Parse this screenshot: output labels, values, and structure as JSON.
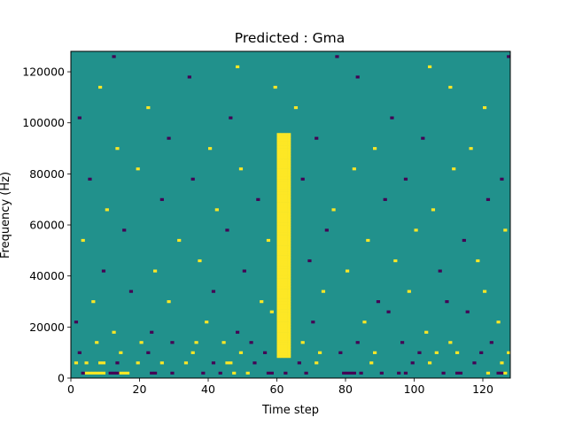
{
  "chart_data": {
    "type": "heatmap",
    "title": "Predicted : Gma",
    "xlabel": "Time step",
    "ylabel": "Frequency (Hz)",
    "x_range": [
      0,
      128
    ],
    "y_range": [
      0,
      128000
    ],
    "x_ticks": [
      "0",
      "20",
      "40",
      "60",
      "80",
      "100",
      "120"
    ],
    "y_ticks": [
      "0",
      "20000",
      "40000",
      "60000",
      "80000",
      "100000",
      "120000"
    ],
    "n_time_steps": 128,
    "n_freq_bins": 128,
    "background_value": 0,
    "value_colors": {
      "-1": "#440154",
      "0": "#21918c",
      "1": "#fde725"
    },
    "dense_band": {
      "time_steps": [
        60,
        64
      ],
      "freq_range_hz": [
        8000,
        96000
      ],
      "value": 1
    },
    "cells": [
      {
        "t": 4,
        "f_hz": 2000,
        "v": 1
      },
      {
        "t": 5,
        "f_hz": 2000,
        "v": 1
      },
      {
        "t": 6,
        "f_hz": 2000,
        "v": 1
      },
      {
        "t": 7,
        "f_hz": 2000,
        "v": 1
      },
      {
        "t": 8,
        "f_hz": 2000,
        "v": 1
      },
      {
        "t": 9,
        "f_hz": 2000,
        "v": 1
      },
      {
        "t": 3,
        "f_hz": 2000,
        "v": -1
      },
      {
        "t": 14,
        "f_hz": 2000,
        "v": 1
      },
      {
        "t": 15,
        "f_hz": 2000,
        "v": 1
      },
      {
        "t": 16,
        "f_hz": 2000,
        "v": 1
      },
      {
        "t": 23,
        "f_hz": 2000,
        "v": -1
      },
      {
        "t": 24,
        "f_hz": 2000,
        "v": -1
      },
      {
        "t": 11,
        "f_hz": 2000,
        "v": -1
      },
      {
        "t": 12,
        "f_hz": 2000,
        "v": -1
      },
      {
        "t": 13,
        "f_hz": 2000,
        "v": -1
      },
      {
        "t": 29,
        "f_hz": 2000,
        "v": -1
      },
      {
        "t": 38,
        "f_hz": 2000,
        "v": -1
      },
      {
        "t": 43,
        "f_hz": 2000,
        "v": -1
      },
      {
        "t": 47,
        "f_hz": 2000,
        "v": 1
      },
      {
        "t": 51,
        "f_hz": 2000,
        "v": 1
      },
      {
        "t": 57,
        "f_hz": 2000,
        "v": -1
      },
      {
        "t": 58,
        "f_hz": 2000,
        "v": -1
      },
      {
        "t": 62,
        "f_hz": 2000,
        "v": -1
      },
      {
        "t": 68,
        "f_hz": 2000,
        "v": -1
      },
      {
        "t": 79,
        "f_hz": 2000,
        "v": -1
      },
      {
        "t": 80,
        "f_hz": 2000,
        "v": -1
      },
      {
        "t": 81,
        "f_hz": 2000,
        "v": -1
      },
      {
        "t": 82,
        "f_hz": 2000,
        "v": -1
      },
      {
        "t": 84,
        "f_hz": 2000,
        "v": -1
      },
      {
        "t": 90,
        "f_hz": 2000,
        "v": -1
      },
      {
        "t": 95,
        "f_hz": 2000,
        "v": -1
      },
      {
        "t": 97,
        "f_hz": 2000,
        "v": -1
      },
      {
        "t": 108,
        "f_hz": 2000,
        "v": -1
      },
      {
        "t": 112,
        "f_hz": 2000,
        "v": -1
      },
      {
        "t": 113,
        "f_hz": 2000,
        "v": -1
      },
      {
        "t": 121,
        "f_hz": 2000,
        "v": 1
      },
      {
        "t": 124,
        "f_hz": 2000,
        "v": -1
      },
      {
        "t": 125,
        "f_hz": 2000,
        "v": -1
      },
      {
        "t": 126,
        "f_hz": 2000,
        "v": 1
      },
      {
        "t": 1,
        "f_hz": 6000,
        "v": 1
      },
      {
        "t": 4,
        "f_hz": 6000,
        "v": 1
      },
      {
        "t": 8,
        "f_hz": 6000,
        "v": 1
      },
      {
        "t": 9,
        "f_hz": 6000,
        "v": 1
      },
      {
        "t": 13,
        "f_hz": 6000,
        "v": -1
      },
      {
        "t": 19,
        "f_hz": 6000,
        "v": 1
      },
      {
        "t": 26,
        "f_hz": 6000,
        "v": 1
      },
      {
        "t": 33,
        "f_hz": 6000,
        "v": 1
      },
      {
        "t": 41,
        "f_hz": 6000,
        "v": -1
      },
      {
        "t": 45,
        "f_hz": 6000,
        "v": 1
      },
      {
        "t": 46,
        "f_hz": 6000,
        "v": 1
      },
      {
        "t": 53,
        "f_hz": 6000,
        "v": -1
      },
      {
        "t": 66,
        "f_hz": 6000,
        "v": -1
      },
      {
        "t": 71,
        "f_hz": 6000,
        "v": 1
      },
      {
        "t": 87,
        "f_hz": 6000,
        "v": 1
      },
      {
        "t": 99,
        "f_hz": 6000,
        "v": -1
      },
      {
        "t": 104,
        "f_hz": 6000,
        "v": 1
      },
      {
        "t": 117,
        "f_hz": 6000,
        "v": -1
      },
      {
        "t": 125,
        "f_hz": 6000,
        "v": 1
      },
      {
        "t": 2,
        "f_hz": 10000,
        "v": -1
      },
      {
        "t": 14,
        "f_hz": 10000,
        "v": 1
      },
      {
        "t": 22,
        "f_hz": 10000,
        "v": -1
      },
      {
        "t": 35,
        "f_hz": 10000,
        "v": 1
      },
      {
        "t": 49,
        "f_hz": 10000,
        "v": 1
      },
      {
        "t": 56,
        "f_hz": 10000,
        "v": -1
      },
      {
        "t": 72,
        "f_hz": 10000,
        "v": 1
      },
      {
        "t": 78,
        "f_hz": 10000,
        "v": -1
      },
      {
        "t": 88,
        "f_hz": 10000,
        "v": 1
      },
      {
        "t": 101,
        "f_hz": 10000,
        "v": -1
      },
      {
        "t": 106,
        "f_hz": 10000,
        "v": 1
      },
      {
        "t": 112,
        "f_hz": 10000,
        "v": 1
      },
      {
        "t": 119,
        "f_hz": 10000,
        "v": -1
      },
      {
        "t": 127,
        "f_hz": 10000,
        "v": 1
      },
      {
        "t": 7,
        "f_hz": 14000,
        "v": 1
      },
      {
        "t": 20,
        "f_hz": 14000,
        "v": 1
      },
      {
        "t": 29,
        "f_hz": 14000,
        "v": -1
      },
      {
        "t": 36,
        "f_hz": 14000,
        "v": 1
      },
      {
        "t": 44,
        "f_hz": 14000,
        "v": 1
      },
      {
        "t": 52,
        "f_hz": 14000,
        "v": -1
      },
      {
        "t": 67,
        "f_hz": 14000,
        "v": 1
      },
      {
        "t": 83,
        "f_hz": 14000,
        "v": -1
      },
      {
        "t": 96,
        "f_hz": 14000,
        "v": -1
      },
      {
        "t": 110,
        "f_hz": 14000,
        "v": 1
      },
      {
        "t": 122,
        "f_hz": 14000,
        "v": -1
      },
      {
        "t": 1,
        "f_hz": 22000,
        "v": -1
      },
      {
        "t": 12,
        "f_hz": 18000,
        "v": 1
      },
      {
        "t": 23,
        "f_hz": 18000,
        "v": -1
      },
      {
        "t": 39,
        "f_hz": 22000,
        "v": 1
      },
      {
        "t": 48,
        "f_hz": 18000,
        "v": -1
      },
      {
        "t": 58,
        "f_hz": 26000,
        "v": 1
      },
      {
        "t": 70,
        "f_hz": 22000,
        "v": -1
      },
      {
        "t": 85,
        "f_hz": 22000,
        "v": 1
      },
      {
        "t": 92,
        "f_hz": 26000,
        "v": -1
      },
      {
        "t": 103,
        "f_hz": 18000,
        "v": 1
      },
      {
        "t": 115,
        "f_hz": 26000,
        "v": -1
      },
      {
        "t": 124,
        "f_hz": 22000,
        "v": 1
      },
      {
        "t": 6,
        "f_hz": 30000,
        "v": 1
      },
      {
        "t": 17,
        "f_hz": 34000,
        "v": -1
      },
      {
        "t": 28,
        "f_hz": 30000,
        "v": 1
      },
      {
        "t": 41,
        "f_hz": 34000,
        "v": -1
      },
      {
        "t": 55,
        "f_hz": 30000,
        "v": 1
      },
      {
        "t": 73,
        "f_hz": 34000,
        "v": 1
      },
      {
        "t": 89,
        "f_hz": 30000,
        "v": -1
      },
      {
        "t": 98,
        "f_hz": 34000,
        "v": 1
      },
      {
        "t": 109,
        "f_hz": 30000,
        "v": -1
      },
      {
        "t": 120,
        "f_hz": 34000,
        "v": 1
      },
      {
        "t": 9,
        "f_hz": 42000,
        "v": -1
      },
      {
        "t": 24,
        "f_hz": 42000,
        "v": 1
      },
      {
        "t": 37,
        "f_hz": 46000,
        "v": 1
      },
      {
        "t": 50,
        "f_hz": 42000,
        "v": -1
      },
      {
        "t": 69,
        "f_hz": 46000,
        "v": -1
      },
      {
        "t": 80,
        "f_hz": 42000,
        "v": 1
      },
      {
        "t": 94,
        "f_hz": 46000,
        "v": 1
      },
      {
        "t": 107,
        "f_hz": 42000,
        "v": -1
      },
      {
        "t": 118,
        "f_hz": 46000,
        "v": 1
      },
      {
        "t": 3,
        "f_hz": 54000,
        "v": 1
      },
      {
        "t": 15,
        "f_hz": 58000,
        "v": -1
      },
      {
        "t": 31,
        "f_hz": 54000,
        "v": 1
      },
      {
        "t": 45,
        "f_hz": 58000,
        "v": -1
      },
      {
        "t": 57,
        "f_hz": 54000,
        "v": 1
      },
      {
        "t": 74,
        "f_hz": 58000,
        "v": -1
      },
      {
        "t": 86,
        "f_hz": 54000,
        "v": 1
      },
      {
        "t": 100,
        "f_hz": 58000,
        "v": 1
      },
      {
        "t": 114,
        "f_hz": 54000,
        "v": -1
      },
      {
        "t": 126,
        "f_hz": 58000,
        "v": 1
      },
      {
        "t": 10,
        "f_hz": 66000,
        "v": 1
      },
      {
        "t": 26,
        "f_hz": 70000,
        "v": -1
      },
      {
        "t": 42,
        "f_hz": 66000,
        "v": 1
      },
      {
        "t": 54,
        "f_hz": 70000,
        "v": -1
      },
      {
        "t": 76,
        "f_hz": 66000,
        "v": 1
      },
      {
        "t": 91,
        "f_hz": 70000,
        "v": -1
      },
      {
        "t": 105,
        "f_hz": 66000,
        "v": 1
      },
      {
        "t": 121,
        "f_hz": 70000,
        "v": -1
      },
      {
        "t": 5,
        "f_hz": 78000,
        "v": -1
      },
      {
        "t": 19,
        "f_hz": 82000,
        "v": 1
      },
      {
        "t": 35,
        "f_hz": 78000,
        "v": -1
      },
      {
        "t": 49,
        "f_hz": 82000,
        "v": 1
      },
      {
        "t": 67,
        "f_hz": 78000,
        "v": -1
      },
      {
        "t": 82,
        "f_hz": 82000,
        "v": 1
      },
      {
        "t": 97,
        "f_hz": 78000,
        "v": -1
      },
      {
        "t": 111,
        "f_hz": 82000,
        "v": 1
      },
      {
        "t": 125,
        "f_hz": 78000,
        "v": -1
      },
      {
        "t": 13,
        "f_hz": 90000,
        "v": 1
      },
      {
        "t": 28,
        "f_hz": 94000,
        "v": -1
      },
      {
        "t": 40,
        "f_hz": 90000,
        "v": 1
      },
      {
        "t": 71,
        "f_hz": 94000,
        "v": -1
      },
      {
        "t": 88,
        "f_hz": 90000,
        "v": 1
      },
      {
        "t": 102,
        "f_hz": 94000,
        "v": -1
      },
      {
        "t": 116,
        "f_hz": 90000,
        "v": 1
      },
      {
        "t": 2,
        "f_hz": 102000,
        "v": -1
      },
      {
        "t": 22,
        "f_hz": 106000,
        "v": 1
      },
      {
        "t": 46,
        "f_hz": 102000,
        "v": -1
      },
      {
        "t": 65,
        "f_hz": 106000,
        "v": 1
      },
      {
        "t": 93,
        "f_hz": 102000,
        "v": -1
      },
      {
        "t": 120,
        "f_hz": 106000,
        "v": 1
      },
      {
        "t": 8,
        "f_hz": 114000,
        "v": 1
      },
      {
        "t": 34,
        "f_hz": 118000,
        "v": -1
      },
      {
        "t": 59,
        "f_hz": 114000,
        "v": 1
      },
      {
        "t": 83,
        "f_hz": 118000,
        "v": -1
      },
      {
        "t": 110,
        "f_hz": 114000,
        "v": 1
      },
      {
        "t": 12,
        "f_hz": 126000,
        "v": -1
      },
      {
        "t": 48,
        "f_hz": 122000,
        "v": 1
      },
      {
        "t": 77,
        "f_hz": 126000,
        "v": -1
      },
      {
        "t": 104,
        "f_hz": 122000,
        "v": 1
      },
      {
        "t": 127,
        "f_hz": 126000,
        "v": -1
      }
    ]
  }
}
